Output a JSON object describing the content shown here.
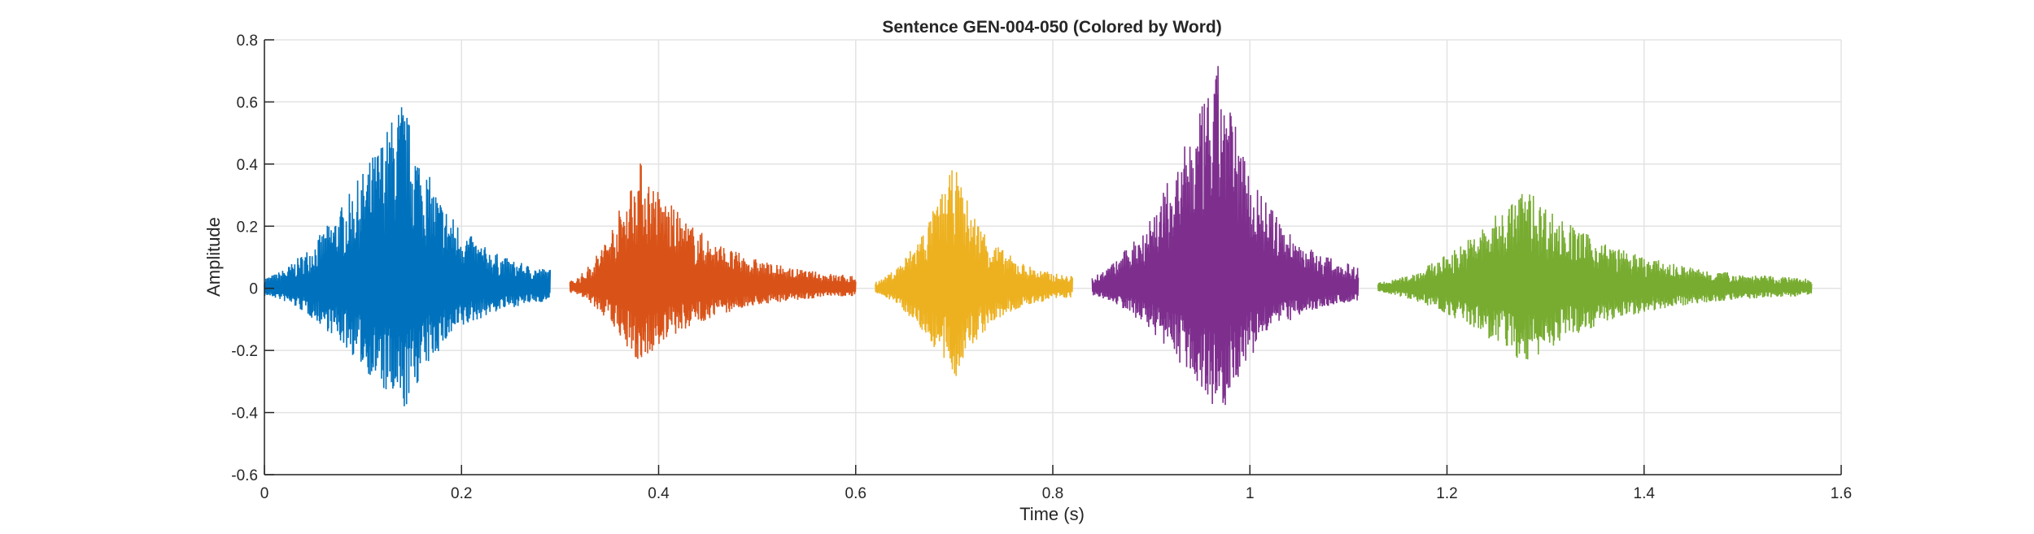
{
  "chart_data": {
    "type": "line",
    "title": "Sentence GEN-004-050 (Colored by Word)",
    "xlabel": "Time (s)",
    "ylabel": "Amplitude",
    "xlim": [
      0,
      1.6
    ],
    "ylim": [
      -0.6,
      0.8
    ],
    "xticks": [
      "0",
      "0.2",
      "0.4",
      "0.6",
      "0.8",
      "1",
      "1.2",
      "1.4",
      "1.6"
    ],
    "xtick_values": [
      0,
      0.2,
      0.4,
      0.6,
      0.8,
      1,
      1.2,
      1.4,
      1.6
    ],
    "yticks": [
      "-0.6",
      "-0.4",
      "-0.2",
      "0",
      "0.2",
      "0.4",
      "0.6",
      "0.8"
    ],
    "ytick_values": [
      -0.6,
      -0.4,
      -0.2,
      0,
      0.2,
      0.4,
      0.6,
      0.8
    ],
    "grid": true,
    "series": [
      {
        "name": "word-1",
        "color": "#0072BD",
        "t_start": 0.0,
        "t_end": 0.29,
        "peak_time": 0.14,
        "max": 0.62,
        "min": -0.42
      },
      {
        "name": "word-2",
        "color": "#D95319",
        "t_start": 0.31,
        "t_end": 0.6,
        "peak_time": 0.38,
        "max": 0.42,
        "min": -0.25
      },
      {
        "name": "word-3",
        "color": "#EDB120",
        "t_start": 0.62,
        "t_end": 0.82,
        "peak_time": 0.7,
        "max": 0.4,
        "min": -0.3
      },
      {
        "name": "word-4",
        "color": "#7E2F8E",
        "t_start": 0.84,
        "t_end": 1.11,
        "peak_time": 0.97,
        "max": 0.74,
        "min": -0.42
      },
      {
        "name": "word-5",
        "color": "#77AC30",
        "t_start": 1.13,
        "t_end": 1.57,
        "peak_time": 1.28,
        "max": 0.33,
        "min": -0.25
      }
    ]
  }
}
